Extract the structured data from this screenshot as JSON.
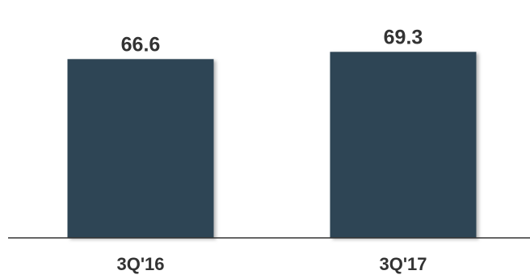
{
  "chart_data": {
    "type": "bar",
    "categories": [
      "3Q'16",
      "3Q'17"
    ],
    "values": [
      66.6,
      69.3
    ],
    "data_labels": [
      "66.6",
      "69.3"
    ],
    "ylim": [
      0,
      74.5
    ],
    "grid": false,
    "legend": "none",
    "title": "",
    "xlabel": "",
    "ylabel": "",
    "colors": {
      "bar": "#2d4454",
      "baseline": "#333333",
      "label": "#333333"
    }
  }
}
